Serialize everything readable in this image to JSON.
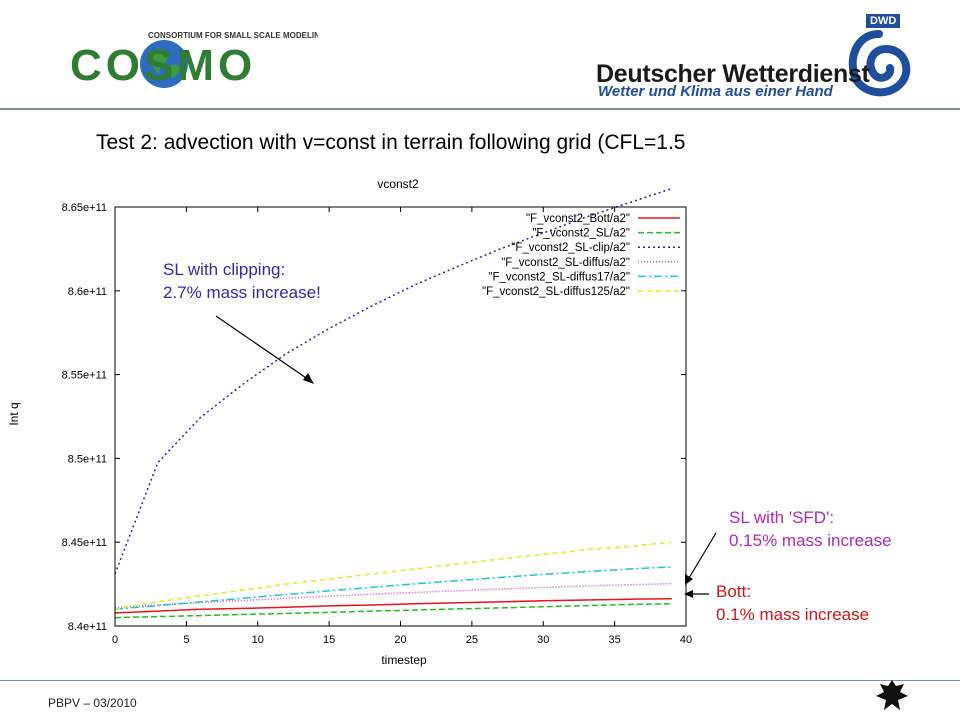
{
  "header": {
    "cosmo_tagline": "CONSORTIUM FOR SMALL SCALE MODELING",
    "cosmo_wordmark": "COSMO",
    "dwd_abbr": "DWD",
    "dwd_name": "Deutscher Wetterdienst",
    "dwd_tagline": "Wetter und Klima aus einer Hand"
  },
  "slide": {
    "title": "Test 2: advection with v=const in terrain following grid (CFL=1.5"
  },
  "annotations": {
    "clipping_line1": "SL with clipping:",
    "clipping_line2": "2.7% mass increase!",
    "sfd_line1": "SL with 'SFD':",
    "sfd_line2": "0.15% mass increase",
    "bott_line1": "Bott:",
    "bott_line2": "0.1% mass increase"
  },
  "footer": {
    "text": "PBPV – 03/2010"
  },
  "colors": {
    "header_rule": "#7a8fa8",
    "clip_annotation": "#2b2bb0",
    "sfd_annotation": "#b028b0",
    "bott_annotation": "#d21414"
  },
  "chart_data": {
    "type": "line",
    "title": "vconst2",
    "xlabel": "timestep",
    "ylabel": "Int q",
    "xlim": [
      0,
      40
    ],
    "ylim": [
      840000000000.0,
      865000000000.0
    ],
    "x_ticks": [
      0,
      5,
      10,
      15,
      20,
      25,
      30,
      35,
      40
    ],
    "y_ticks": [
      840000000000.0,
      845000000000.0,
      850000000000.0,
      855000000000.0,
      860000000000.0,
      865000000000.0
    ],
    "x_tick_labels": [
      "0",
      "5",
      "10",
      "15",
      "20",
      "25",
      "30",
      "35",
      "40"
    ],
    "y_tick_labels": [
      "8.4e+11",
      "8.45e+11",
      "8.5e+11",
      "8.55e+11",
      "8.6e+11",
      "8.65e+11"
    ],
    "legend_position": "top-right",
    "x": [
      0,
      3,
      6,
      9,
      12,
      15,
      18,
      21,
      24,
      27,
      30,
      33,
      36,
      39
    ],
    "series": [
      {
        "name": "\"F_vconst2_Bott/a2\"",
        "color": "#e8141e",
        "dash": "solid",
        "values": [
          840780000000.0,
          840890000000.0,
          841000000000.0,
          841050000000.0,
          841120000000.0,
          841200000000.0,
          841250000000.0,
          841330000000.0,
          841390000000.0,
          841440000000.0,
          841510000000.0,
          841550000000.0,
          841600000000.0,
          841630000000.0
        ]
      },
      {
        "name": "\"F_vconst2_SL/a2\"",
        "color": "#1fc01f",
        "dash": "6,3",
        "values": [
          840500000000.0,
          840560000000.0,
          840620000000.0,
          840690000000.0,
          840750000000.0,
          840820000000.0,
          840890000000.0,
          840950000000.0,
          841020000000.0,
          841080000000.0,
          841150000000.0,
          841210000000.0,
          841280000000.0,
          841330000000.0
        ]
      },
      {
        "name": "\"F_vconst2_SL-clip/a2\"",
        "color": "#2525b8",
        "dash": "2,3",
        "values": [
          843100000000.0,
          849750000000.0,
          852450000000.0,
          854450000000.0,
          856250000000.0,
          857750000000.0,
          859100000000.0,
          860350000000.0,
          861450000000.0,
          862500000000.0,
          863450000000.0,
          864400000000.0,
          865250000000.0,
          866100000000.0
        ]
      },
      {
        "name": "\"F_vconst2_SL-diffus/a2\"",
        "color": "#d040d0",
        "dash": "1,2",
        "values": [
          841100000000.0,
          841250000000.0,
          841400000000.0,
          841530000000.0,
          841650000000.0,
          841770000000.0,
          841900000000.0,
          842000000000.0,
          842100000000.0,
          842200000000.0,
          842300000000.0,
          842390000000.0,
          842460000000.0,
          842530000000.0
        ]
      },
      {
        "name": "\"F_vconst2_SL-diffus17/a2\"",
        "color": "#18c8d0",
        "dash": "8,3,2,3",
        "values": [
          841000000000.0,
          841220000000.0,
          841440000000.0,
          841660000000.0,
          841880000000.0,
          842100000000.0,
          842310000000.0,
          842510000000.0,
          842710000000.0,
          842900000000.0,
          843080000000.0,
          843240000000.0,
          843400000000.0,
          843520000000.0
        ]
      },
      {
        "name": "\"F_vconst2_SL-diffus125/a2\"",
        "color": "#e8e81c",
        "dash": "5,4",
        "values": [
          841000000000.0,
          841450000000.0,
          841800000000.0,
          842150000000.0,
          842500000000.0,
          842800000000.0,
          843100000000.0,
          843400000000.0,
          843700000000.0,
          844000000000.0,
          844280000000.0,
          844550000000.0,
          844750000000.0,
          845000000000.0
        ]
      }
    ]
  }
}
